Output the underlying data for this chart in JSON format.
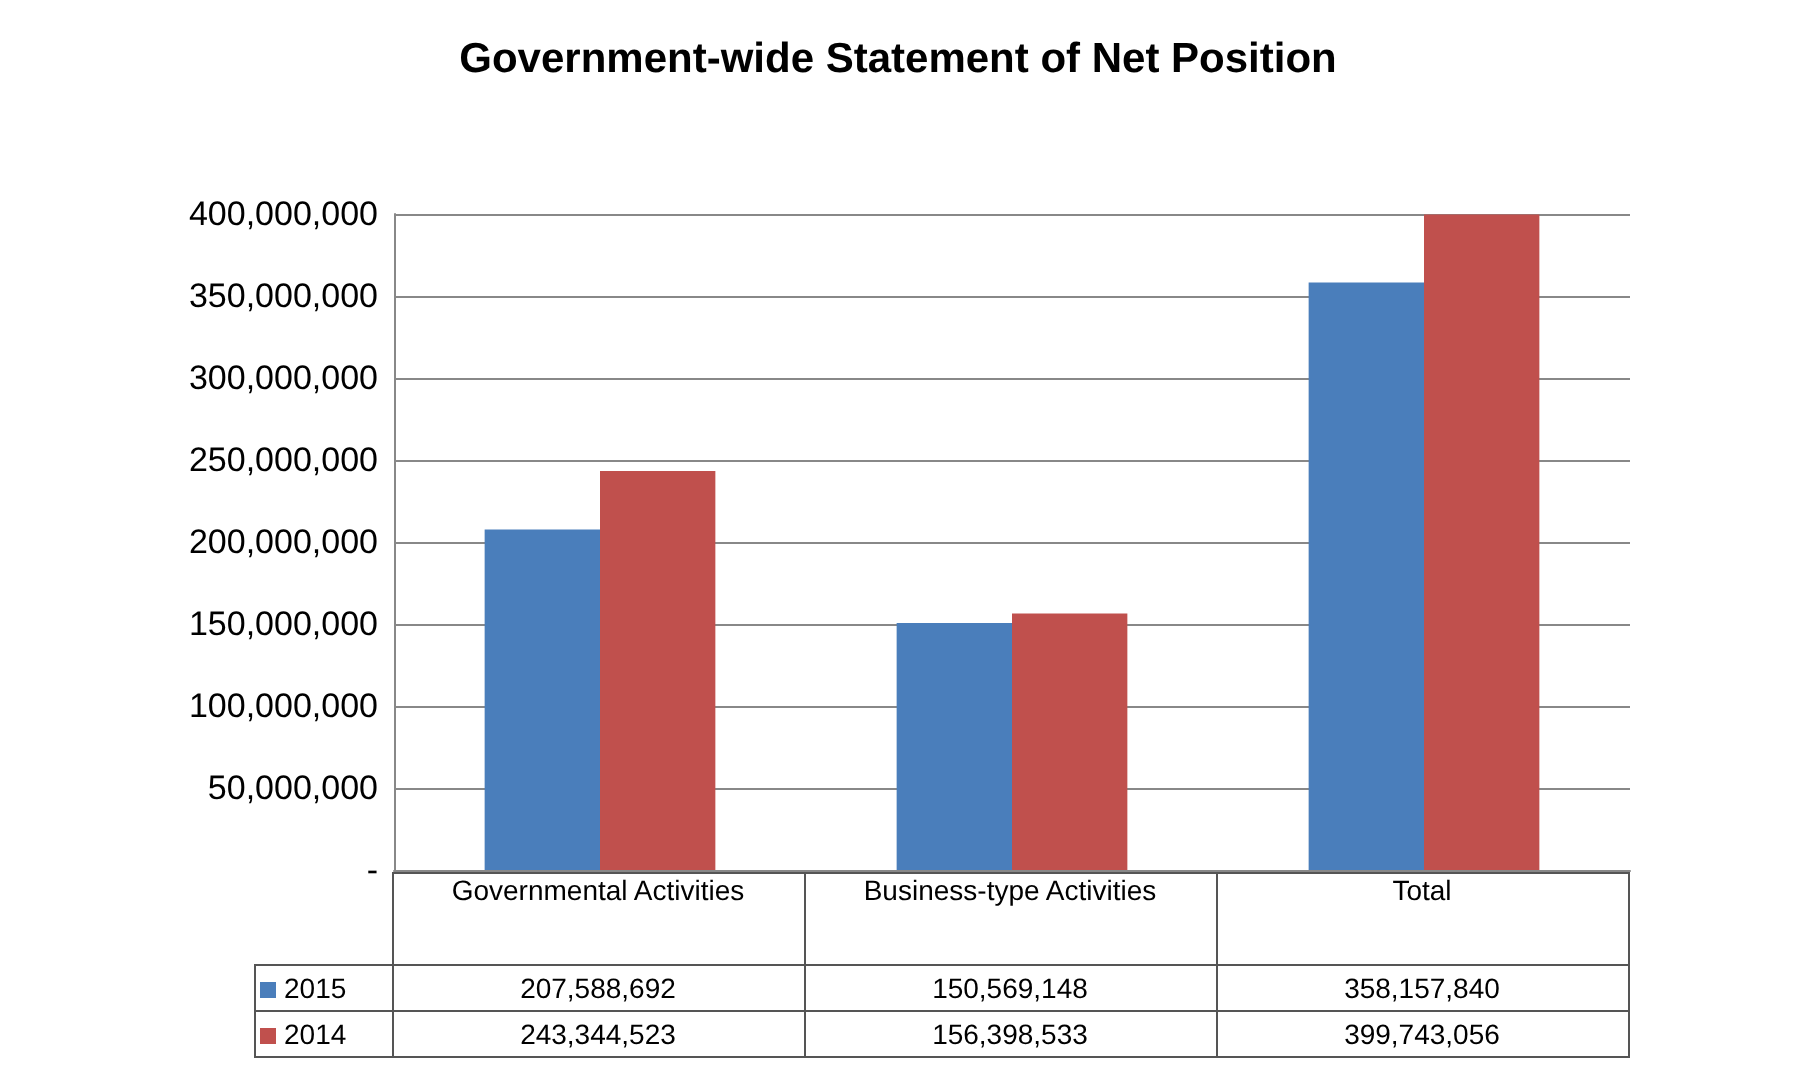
{
  "chart_data": {
    "type": "bar",
    "title": "Government-wide Statement of Net Position",
    "categories": [
      "Governmental Activities",
      "Business-type Activities",
      "Total"
    ],
    "series": [
      {
        "name": "2015",
        "color": "#4a7ebb",
        "values": [
          207588692,
          150569148,
          358157840
        ],
        "value_labels": [
          "207,588,692",
          "150,569,148",
          "358,157,840"
        ]
      },
      {
        "name": "2014",
        "color": "#c0504d",
        "values": [
          243344523,
          156398533,
          399743056
        ],
        "value_labels": [
          "243,344,523",
          "156,398,533",
          "399,743,056"
        ]
      }
    ],
    "ylim": [
      0,
      400000000
    ],
    "yticks": [
      {
        "value": 0,
        "label": "-"
      },
      {
        "value": 50000000,
        "label": "50,000,000"
      },
      {
        "value": 100000000,
        "label": "100,000,000"
      },
      {
        "value": 150000000,
        "label": "150,000,000"
      },
      {
        "value": 200000000,
        "label": "200,000,000"
      },
      {
        "value": 250000000,
        "label": "250,000,000"
      },
      {
        "value": 300000000,
        "label": "300,000,000"
      },
      {
        "value": 350000000,
        "label": "350,000,000"
      },
      {
        "value": 400000000,
        "label": "400,000,000"
      }
    ],
    "grid": "y",
    "legend": "bottom"
  }
}
